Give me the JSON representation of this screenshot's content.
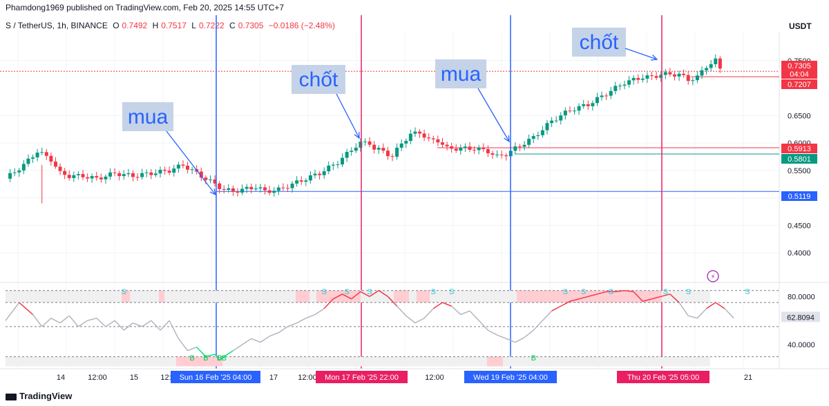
{
  "header": {
    "publisher": "Phamdong1969 published on TradingView.com, Feb 20, 2025 14:55 UTC+7"
  },
  "symbol": {
    "name": "S / TetherUS, 1h, BINANCE",
    "open_label": "O",
    "open": "0.7492",
    "high_label": "H",
    "high": "0.7517",
    "low_label": "L",
    "low": "0.7222",
    "close_label": "C",
    "close": "0.7305",
    "change": "−0.0186 (−2.48%)"
  },
  "currency": "USDT",
  "footer": {
    "brand": "TradingView"
  },
  "colors": {
    "up": "#089981",
    "down": "#f23645",
    "blue": "#2962ff",
    "crimson": "#e91e63",
    "label_bg": "#c5d3e8",
    "rsi_line": "#b2b5be"
  },
  "chart_data": [
    {
      "type": "candlestick",
      "ylim": [
        0.35,
        0.8
      ],
      "y_ticks": [
        "0.7500",
        "0.6500",
        "0.6000",
        "0.5500",
        "0.5000",
        "0.4500",
        "0.4000"
      ],
      "price_labels": [
        {
          "value": "0.7305",
          "extra": "04:04",
          "color": "#f23645"
        },
        {
          "value": "0.7207",
          "color": "#f23645"
        },
        {
          "value": "0.5913",
          "color": "#f23645"
        },
        {
          "value": "0.5801",
          "color": "#089981"
        },
        {
          "value": "0.5119",
          "color": "#2962ff"
        }
      ],
      "x_ticks": [
        "14",
        "12:00",
        "15",
        "12:",
        "17",
        "12:00",
        "12:00",
        "21"
      ],
      "time_labels": [
        {
          "text": "Sun 16 Feb '25   04:00",
          "color": "#2962ff"
        },
        {
          "text": "Mon 17 Feb '25   22:00",
          "color": "#e91e63"
        },
        {
          "text": "Wed 19 Feb '25   04:00",
          "color": "#2962ff"
        },
        {
          "text": "Thu 20 Feb '25   05:00",
          "color": "#e91e63"
        }
      ],
      "annotations": [
        {
          "text": "mua",
          "target": "Sun 16 Feb '25 04:00"
        },
        {
          "text": "chốt",
          "target": "Mon 17 Feb '25 22:00"
        },
        {
          "text": "mua",
          "target": "Wed 19 Feb '25 04:00"
        },
        {
          "text": "chốt",
          "target": "Thu 20 Feb '25 05:00"
        }
      ],
      "price_path": [
        [
          0,
          0.535
        ],
        [
          4,
          0.56
        ],
        [
          7,
          0.585
        ],
        [
          10,
          0.57
        ],
        [
          12,
          0.545
        ],
        [
          14,
          0.54
        ],
        [
          17,
          0.54
        ],
        [
          20,
          0.535
        ],
        [
          24,
          0.545
        ],
        [
          28,
          0.54
        ],
        [
          32,
          0.545
        ],
        [
          36,
          0.55
        ],
        [
          39,
          0.56
        ],
        [
          42,
          0.545
        ],
        [
          44,
          0.535
        ],
        [
          46,
          0.525
        ],
        [
          48,
          0.515
        ],
        [
          50,
          0.512
        ],
        [
          52,
          0.515
        ],
        [
          55,
          0.52
        ],
        [
          57,
          0.512
        ],
        [
          60,
          0.515
        ],
        [
          63,
          0.525
        ],
        [
          66,
          0.535
        ],
        [
          69,
          0.545
        ],
        [
          71,
          0.555
        ],
        [
          73,
          0.565
        ],
        [
          75,
          0.58
        ],
        [
          77,
          0.595
        ],
        [
          78,
          0.6
        ],
        [
          80,
          0.6
        ],
        [
          81,
          0.59
        ],
        [
          83,
          0.585
        ],
        [
          85,
          0.575
        ],
        [
          87,
          0.6
        ],
        [
          89,
          0.615
        ],
        [
          91,
          0.62
        ],
        [
          93,
          0.605
        ],
        [
          95,
          0.605
        ],
        [
          97,
          0.59
        ],
        [
          100,
          0.59
        ],
        [
          103,
          0.59
        ],
        [
          106,
          0.585
        ],
        [
          108,
          0.575
        ],
        [
          110,
          0.58
        ],
        [
          111,
          0.585
        ],
        [
          113,
          0.595
        ],
        [
          116,
          0.61
        ],
        [
          118,
          0.625
        ],
        [
          120,
          0.64
        ],
        [
          122,
          0.65
        ],
        [
          124,
          0.66
        ],
        [
          126,
          0.665
        ],
        [
          128,
          0.67
        ],
        [
          130,
          0.68
        ],
        [
          132,
          0.69
        ],
        [
          134,
          0.7
        ],
        [
          136,
          0.71
        ],
        [
          138,
          0.715
        ],
        [
          140,
          0.72
        ],
        [
          142,
          0.72
        ],
        [
          144,
          0.725
        ],
        [
          146,
          0.725
        ],
        [
          148,
          0.725
        ],
        [
          149,
          0.72
        ],
        [
          150,
          0.715
        ],
        [
          152,
          0.72
        ],
        [
          154,
          0.74
        ],
        [
          156,
          0.75
        ],
        [
          157,
          0.735
        ]
      ]
    },
    {
      "type": "line",
      "name": "RSI",
      "ylim": [
        20,
        90
      ],
      "y_ticks": [
        "80.0000",
        "40.0000"
      ],
      "current": "62.8094",
      "markers": [
        {
          "text": "S",
          "at": 26,
          "kind": "sell"
        },
        {
          "text": "S",
          "at": 70,
          "kind": "sell"
        },
        {
          "text": "S",
          "at": 75,
          "kind": "sell"
        },
        {
          "text": "S",
          "at": 80,
          "kind": "sell"
        },
        {
          "text": "S",
          "at": 94,
          "kind": "sell"
        },
        {
          "text": "S",
          "at": 98,
          "kind": "sell"
        },
        {
          "text": "S",
          "at": 123,
          "kind": "sell"
        },
        {
          "text": "S",
          "at": 127,
          "kind": "sell"
        },
        {
          "text": "S",
          "at": 133,
          "kind": "sell"
        },
        {
          "text": "S",
          "at": 145,
          "kind": "sell"
        },
        {
          "text": "S",
          "at": 150,
          "kind": "sell"
        },
        {
          "text": "S",
          "at": 163,
          "kind": "sell"
        },
        {
          "text": "B",
          "at": 41,
          "kind": "buy"
        },
        {
          "text": "B",
          "at": 44,
          "kind": "buy"
        },
        {
          "text": "B",
          "at": 47,
          "kind": "buy"
        },
        {
          "text": "B",
          "at": 48,
          "kind": "buy"
        },
        {
          "text": "B",
          "at": 116,
          "kind": "buy"
        }
      ],
      "values_path": [
        [
          0,
          60
        ],
        [
          3,
          75
        ],
        [
          6,
          65
        ],
        [
          8,
          55
        ],
        [
          10,
          62
        ],
        [
          12,
          58
        ],
        [
          14,
          64
        ],
        [
          16,
          55
        ],
        [
          18,
          60
        ],
        [
          20,
          62
        ],
        [
          22,
          55
        ],
        [
          24,
          60
        ],
        [
          26,
          52
        ],
        [
          28,
          58
        ],
        [
          30,
          55
        ],
        [
          32,
          60
        ],
        [
          34,
          52
        ],
        [
          36,
          60
        ],
        [
          38,
          45
        ],
        [
          40,
          35
        ],
        [
          42,
          38
        ],
        [
          44,
          30
        ],
        [
          46,
          32
        ],
        [
          47,
          27
        ],
        [
          48,
          30
        ],
        [
          50,
          35
        ],
        [
          52,
          40
        ],
        [
          54,
          45
        ],
        [
          56,
          42
        ],
        [
          58,
          47
        ],
        [
          60,
          50
        ],
        [
          62,
          55
        ],
        [
          64,
          58
        ],
        [
          66,
          62
        ],
        [
          68,
          65
        ],
        [
          70,
          70
        ],
        [
          72,
          78
        ],
        [
          74,
          82
        ],
        [
          76,
          78
        ],
        [
          78,
          84
        ],
        [
          80,
          80
        ],
        [
          82,
          85
        ],
        [
          84,
          80
        ],
        [
          86,
          72
        ],
        [
          88,
          64
        ],
        [
          90,
          58
        ],
        [
          92,
          62
        ],
        [
          94,
          70
        ],
        [
          96,
          75
        ],
        [
          98,
          72
        ],
        [
          100,
          65
        ],
        [
          102,
          68
        ],
        [
          104,
          60
        ],
        [
          106,
          52
        ],
        [
          108,
          48
        ],
        [
          110,
          45
        ],
        [
          112,
          42
        ],
        [
          114,
          46
        ],
        [
          116,
          52
        ],
        [
          118,
          60
        ],
        [
          120,
          68
        ],
        [
          122,
          72
        ],
        [
          124,
          76
        ],
        [
          126,
          78
        ],
        [
          128,
          80
        ],
        [
          130,
          82
        ],
        [
          132,
          84
        ],
        [
          134,
          84
        ],
        [
          136,
          85
        ],
        [
          138,
          84
        ],
        [
          140,
          76
        ],
        [
          142,
          78
        ],
        [
          144,
          80
        ],
        [
          146,
          82
        ],
        [
          148,
          75
        ],
        [
          150,
          64
        ],
        [
          152,
          62
        ],
        [
          154,
          70
        ],
        [
          156,
          75
        ],
        [
          158,
          70
        ],
        [
          160,
          62
        ]
      ]
    }
  ]
}
